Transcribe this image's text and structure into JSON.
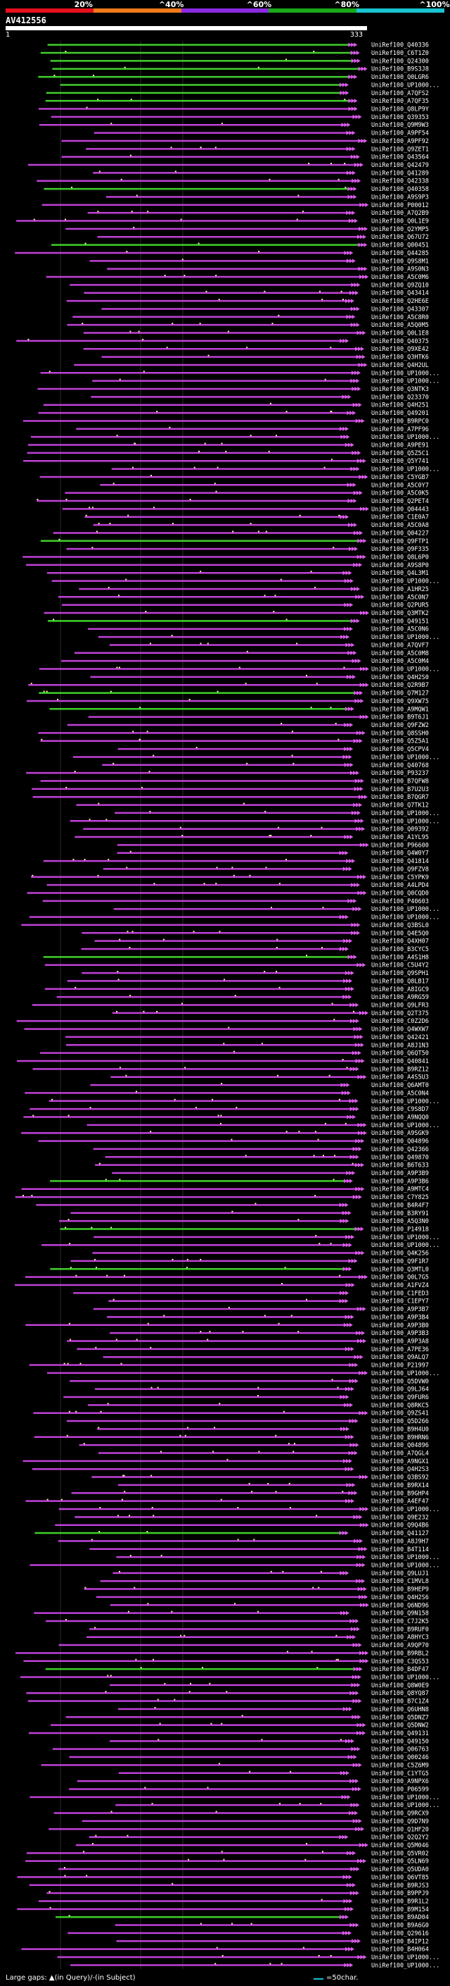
{
  "scale": {
    "labels": [
      "20%",
      "^40%",
      "^60%",
      "^80%",
      "^100%"
    ],
    "segment_colors": [
      "#e8101d",
      "#ee7a1a",
      "#8a2be2",
      "#1aa81a",
      "#19c3d0"
    ]
  },
  "query": {
    "id": "AV412556",
    "start": "1",
    "end": "333"
  },
  "hits": [
    "UniRef100_Q40336",
    "UniRef100_C6T1Z0",
    "UniRef100_Q24300",
    "UniRef100_B9S3J8",
    "UniRef100_Q0LGR6",
    "UniRef100_UP1000...",
    "UniRef100_A7QFS2",
    "UniRef100_A7QF35",
    "UniRef100_Q8LP9Y",
    "UniRef100_Q39353",
    "UniRef100_Q9M9W3",
    "UniRef100_A9PF54",
    "UniRef100_A9PF92",
    "UniRef100_Q9ZET1",
    "UniRef100_Q43564",
    "UniRef100_Q42479",
    "UniRef100_Q41289",
    "UniRef100_Q42338",
    "UniRef100_Q40358",
    "UniRef100_A9S9P3",
    "UniRef100_P00012",
    "UniRef100_A7Q2B9",
    "UniRef100_Q0L1E9",
    "UniRef100_Q2YMP5",
    "UniRef100_Q67U72",
    "UniRef100_Q00451",
    "UniRef100_Q44285",
    "UniRef100_Q9S8M1",
    "UniRef100_A9S0N3",
    "UniRef100_A5C0M6",
    "UniRef100_Q9ZQ10",
    "UniRef100_Q43414",
    "UniRef100_Q2HE6E",
    "UniRef100_Q43307",
    "UniRef100_A5C8R0",
    "UniRef100_A5Q0M5",
    "UniRef100_Q0L1E8",
    "UniRef100_Q40375",
    "UniRef100_Q9XE42",
    "UniRef100_Q3HTK6",
    "UniRef100_Q4H2UL",
    "UniRef100_UP1000...",
    "UniRef100_UP1000...",
    "UniRef100_Q3NTK3",
    "UniRef100_Q23370",
    "UniRef100_Q4H251",
    "UniRef100_Q49201",
    "UniRef100_B9RPC0",
    "UniRef100_A7PF96",
    "UniRef100_UP1000...",
    "UniRef100_A9PE91",
    "UniRef100_Q5Z5C1",
    "UniRef100_Q5Y741",
    "UniRef100_UP1000...",
    "UniRef100_C5YGB7",
    "UniRef100_A5C0Y7",
    "UniRef100_A5C0K5",
    "UniRef100_Q2PET4",
    "UniRef100_Q04443",
    "UniRef100_C1E0A7",
    "UniRef100_A5C0A8",
    "UniRef100_Q04227",
    "UniRef100_Q9FTP1",
    "UniRef100_Q9F335",
    "UniRef100_Q8L6P0",
    "UniRef100_A9S8P0",
    "UniRef100_Q4L3M1",
    "UniRef100_UP1000...",
    "UniRef100_A1HR25",
    "UniRef100_A5C0N7",
    "UniRef100_Q2PUR5",
    "UniRef100_Q3MTK2",
    "UniRef100_Q49151",
    "UniRef100_A5C0N6",
    "UniRef100_UP1000...",
    "UniRef100_A7QVF7",
    "UniRef100_A5C0M8",
    "UniRef100_A5C0M4",
    "UniRef100_UP1000...",
    "UniRef100_Q4H2S0",
    "UniRef100_Q2R9B7",
    "UniRef100_Q7M127",
    "UniRef100_Q9XW75",
    "UniRef100_A9MQW1",
    "UniRef100_B9T6J1",
    "UniRef100_Q9FZW2",
    "UniRef100_Q8SSH0",
    "UniRef100_Q5Z5A1",
    "UniRef100_Q5CPV4",
    "UniRef100_UP1000...",
    "UniRef100_Q40768",
    "UniRef100_P93237",
    "UniRef100_B7QFW8",
    "UniRef100_B7U2U3",
    "UniRef100_B7QGR7",
    "UniRef100_Q7TK12",
    "UniRef100_UP1000...",
    "UniRef100_UP1000...",
    "UniRef100_Q09392",
    "UniRef100_A1YL95",
    "UniRef100_P96600",
    "UniRef100_Q4W0Y7",
    "UniRef100_Q41814",
    "UniRef100_Q9FZV8",
    "UniRef100_C5YPK9",
    "UniRef100_A4LPD4",
    "UniRef100_Q0CQD0",
    "UniRef100_P40603",
    "UniRef100_UP1000...",
    "UniRef100_UP1000...",
    "UniRef100_Q3BSL0",
    "UniRef100_Q4E5Q0",
    "UniRef100_Q4XH07",
    "UniRef100_B3CYC5",
    "UniRef100_A4S1H8",
    "UniRef100_C5U4Y2",
    "UniRef100_Q9SPH1",
    "UniRef100_Q8LB17",
    "UniRef100_A8IGC9",
    "UniRef100_A9RG59",
    "UniRef100_Q9LFR3",
    "UniRef100_Q2T375",
    "UniRef100_C0Z2D6",
    "UniRef100_Q4WXW7",
    "UniRef100_Q42421",
    "UniRef100_A8J1N3",
    "UniRef100_Q6QT50",
    "UniRef100_Q40841",
    "UniRef100_B9RZ12",
    "UniRef100_A4S5U3",
    "UniRef100_Q6AMT0",
    "UniRef100_A5C0N4",
    "UniRef100_UP1000...",
    "UniRef100_C9S8D7",
    "UniRef100_A9NQQ0",
    "UniRef100_UP1000...",
    "UniRef100_A9SGK9",
    "UniRef100_Q04896",
    "UniRef100_Q42366",
    "UniRef100_Q49870",
    "UniRef100_B6T633",
    "UniRef100_A9P3B9",
    "UniRef100_A9P3B6",
    "UniRef100_A9MTC4",
    "UniRef100_C7Y825",
    "UniRef100_B4R4F7",
    "UniRef100_B3RY91",
    "UniRef100_A5Q3N0",
    "UniRef100_P14918",
    "UniRef100_UP1000...",
    "UniRef100_UP1000...",
    "UniRef100_Q4K256",
    "UniRef100_Q9F1R7",
    "UniRef100_Q3MTL0",
    "UniRef100_Q0L7G5",
    "UniRef100_A1FVZ4",
    "UniRef100_C1FED3",
    "UniRef100_C1EPY7",
    "UniRef100_A9P3B7",
    "UniRef100_A9P3B4",
    "UniRef100_A9P3B0",
    "UniRef100_A9P3B3",
    "UniRef100_A9P3A8",
    "UniRef100_A7PE36",
    "UniRef100_Q9ALQ7",
    "UniRef100_P21997",
    "UniRef100_UP1000...",
    "UniRef100_Q5DVW0",
    "UniRef100_Q9LJ64",
    "UniRef100_Q9FUR6",
    "UniRef100_Q8RKC5",
    "UniRef100_Q9ZS41",
    "UniRef100_Q5D266",
    "UniRef100_B9H4U0",
    "UniRef100_B9HRN6",
    "UniRef100_Q04896",
    "UniRef100_A7QGL4",
    "UniRef100_A9NGX1",
    "UniRef100_Q4H2S3",
    "UniRef100_Q3BS92",
    "UniRef100_B9RX14",
    "UniRef100_B9GHP4",
    "UniRef100_A4EF47",
    "UniRef100_UP1000...",
    "UniRef100_Q9E232",
    "UniRef100_Q9Q4B6",
    "UniRef100_Q41127",
    "UniRef100_A8J9H7",
    "UniRef100_B4T114",
    "UniRef100_UP1000...",
    "UniRef100_UP1000...",
    "UniRef100_Q9LUJ1",
    "UniRef100_C1MVL8",
    "UniRef100_B9HEP9",
    "UniRef100_Q4H2S6",
    "UniRef100_Q6ND96",
    "UniRef100_Q9N158",
    "UniRef100_C7J2K5",
    "UniRef100_B9RUF0",
    "UniRef100_A8HYC3",
    "UniRef100_A9QP70",
    "UniRef100_B9RBL2",
    "UniRef100_C3QS53",
    "UniRef100_B4DF47",
    "UniRef100_UP1000...",
    "UniRef100_Q8W0E9",
    "UniRef100_Q8YQ87",
    "UniRef100_B7C1Z4",
    "UniRef100_Q6UHN8",
    "UniRef100_Q5DNZ7",
    "UniRef100_Q5DNW2",
    "UniRef100_Q49131",
    "UniRef100_Q49150",
    "UniRef100_Q06763",
    "UniRef100_Q00246",
    "UniRef100_C5Z6M9",
    "UniRef100_C1YTG5",
    "UniRef100_A9NPX6",
    "UniRef100_P06599",
    "UniRef100_UP1000...",
    "UniRef100_UP1000...",
    "UniRef100_Q9RCX9",
    "UniRef100_Q9D7N9",
    "UniRef100_Q1HF20",
    "UniRef100_Q2Q2Y2",
    "UniRef100_Q5M046",
    "UniRef100_Q5VR02",
    "UniRef100_Q5LN69",
    "UniRef100_Q5UDA0",
    "UniRef100_Q6VT85",
    "UniRef100_B9RJS3",
    "UniRef100_B9PPJ9",
    "UniRef100_B9R1L2",
    "UniRef100_B9M154",
    "UniRef100_B9AD04",
    "UniRef100_B9A6G0",
    "UniRef100_Q29616",
    "UniRef100_B4IP12",
    "UniRef100_B4H064",
    "UniRef100_UP1000...",
    "UniRef100_UP1000..."
  ],
  "legend": {
    "gaps": "Large gaps: ▲(in Query)/-(in Subject)",
    "scale": "=50char."
  }
}
